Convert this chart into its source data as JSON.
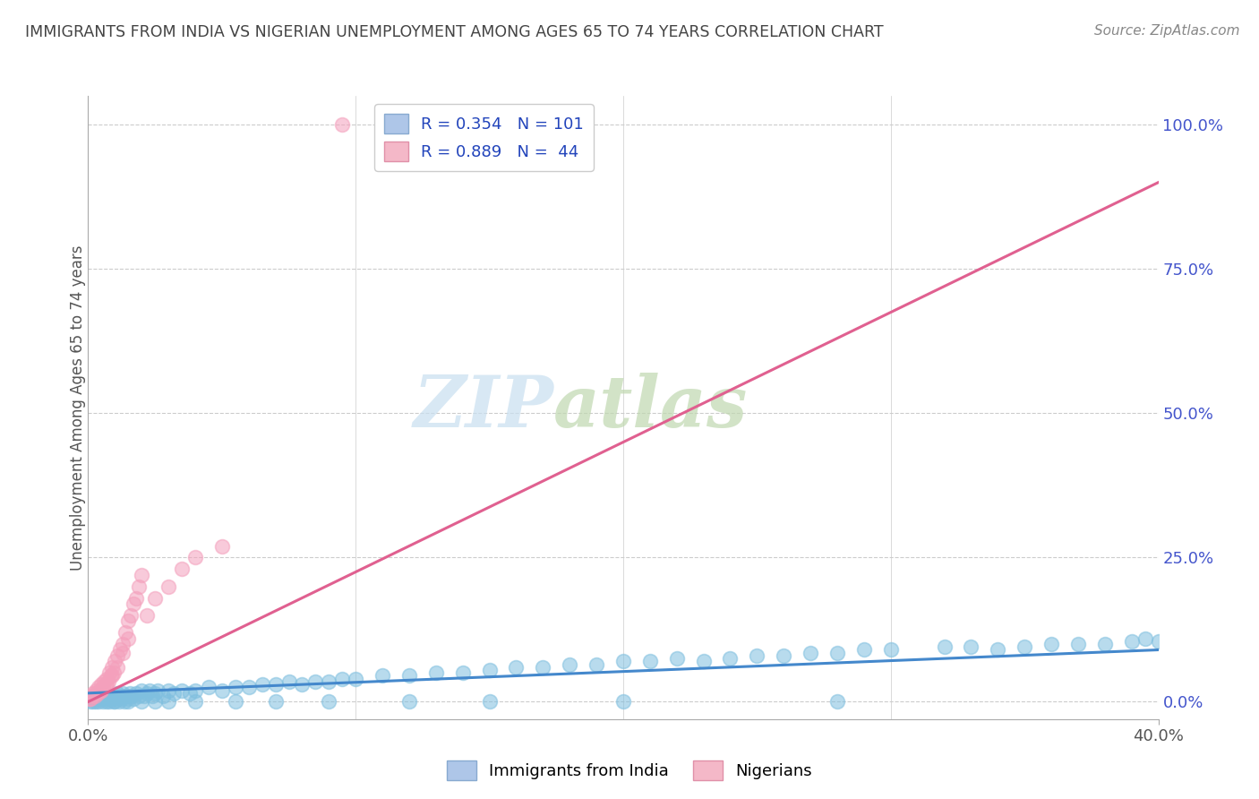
{
  "title": "IMMIGRANTS FROM INDIA VS NIGERIAN UNEMPLOYMENT AMONG AGES 65 TO 74 YEARS CORRELATION CHART",
  "source": "Source: ZipAtlas.com",
  "ylabel": "Unemployment Among Ages 65 to 74 years",
  "ytick_labels": [
    "0.0%",
    "25.0%",
    "50.0%",
    "75.0%",
    "100.0%"
  ],
  "ytick_values": [
    0,
    25,
    50,
    75,
    100
  ],
  "xlim": [
    0,
    40
  ],
  "ylim": [
    -3,
    105
  ],
  "legend_entries": [
    {
      "label": "R = 0.354   N = 101",
      "color": "#aec6e8"
    },
    {
      "label": "R = 0.889   N =  44",
      "color": "#f4b8c8"
    }
  ],
  "legend_labels_bottom": [
    "Immigrants from India",
    "Nigerians"
  ],
  "watermark_zip": "ZIP",
  "watermark_atlas": "atlas",
  "india_color": "#7fbfdf",
  "nigeria_color": "#f4a0bc",
  "india_line_color": "#4488cc",
  "nigeria_line_color": "#e06090",
  "background_color": "#ffffff",
  "grid_color": "#cccccc",
  "title_color": "#444444",
  "ytick_color": "#4455cc",
  "xtick_color": "#555555",
  "india_line_y0": 1.5,
  "india_line_y40": 9.0,
  "nigeria_line_y0": 0.0,
  "nigeria_line_y40": 90.0,
  "india_scatter_x": [
    0.1,
    0.15,
    0.2,
    0.25,
    0.3,
    0.35,
    0.4,
    0.5,
    0.55,
    0.6,
    0.65,
    0.7,
    0.75,
    0.8,
    0.85,
    0.9,
    0.95,
    1.0,
    1.05,
    1.1,
    1.15,
    1.2,
    1.25,
    1.3,
    1.35,
    1.4,
    1.5,
    1.55,
    1.6,
    1.7,
    1.8,
    1.9,
    2.0,
    2.1,
    2.2,
    2.3,
    2.4,
    2.5,
    2.6,
    2.8,
    3.0,
    3.2,
    3.5,
    3.8,
    4.0,
    4.5,
    5.0,
    5.5,
    6.0,
    6.5,
    7.0,
    7.5,
    8.0,
    8.5,
    9.0,
    9.5,
    10.0,
    11.0,
    12.0,
    13.0,
    14.0,
    15.0,
    16.0,
    17.0,
    18.0,
    19.0,
    20.0,
    21.0,
    22.0,
    23.0,
    24.0,
    25.0,
    26.0,
    27.0,
    28.0,
    29.0,
    30.0,
    32.0,
    33.0,
    34.0,
    35.0,
    36.0,
    37.0,
    38.0,
    39.0,
    39.5,
    40.0,
    1.0,
    1.5,
    2.0,
    2.5,
    3.0,
    4.0,
    5.5,
    7.0,
    9.0,
    12.0,
    15.0,
    20.0,
    28.0
  ],
  "india_scatter_y": [
    0.0,
    0.5,
    0.0,
    1.0,
    0.0,
    0.5,
    0.0,
    1.0,
    0.0,
    0.5,
    1.0,
    0.0,
    0.5,
    0.0,
    1.0,
    0.5,
    0.0,
    1.0,
    0.5,
    1.5,
    0.0,
    1.0,
    0.5,
    1.5,
    0.0,
    1.0,
    0.5,
    1.5,
    1.0,
    0.5,
    1.5,
    1.0,
    2.0,
    1.0,
    1.5,
    2.0,
    1.0,
    1.5,
    2.0,
    1.0,
    2.0,
    1.5,
    2.0,
    1.5,
    2.0,
    2.5,
    2.0,
    2.5,
    2.5,
    3.0,
    3.0,
    3.5,
    3.0,
    3.5,
    3.5,
    4.0,
    4.0,
    4.5,
    4.5,
    5.0,
    5.0,
    5.5,
    6.0,
    6.0,
    6.5,
    6.5,
    7.0,
    7.0,
    7.5,
    7.0,
    7.5,
    8.0,
    8.0,
    8.5,
    8.5,
    9.0,
    9.0,
    9.5,
    9.5,
    9.0,
    9.5,
    10.0,
    10.0,
    10.0,
    10.5,
    11.0,
    10.5,
    0.0,
    0.0,
    0.0,
    0.0,
    0.0,
    0.0,
    0.0,
    0.0,
    0.0,
    0.0,
    0.0,
    0.0,
    0.0
  ],
  "nigeria_scatter_x": [
    0.05,
    0.1,
    0.15,
    0.2,
    0.25,
    0.3,
    0.35,
    0.4,
    0.45,
    0.5,
    0.55,
    0.6,
    0.65,
    0.7,
    0.75,
    0.8,
    0.85,
    0.9,
    0.95,
    1.0,
    1.1,
    1.2,
    1.3,
    1.4,
    1.5,
    1.6,
    1.7,
    1.8,
    1.9,
    2.0,
    2.2,
    2.5,
    3.0,
    3.5,
    4.0,
    5.0,
    0.3,
    0.5,
    0.7,
    0.9,
    1.1,
    1.3,
    1.5,
    9.5
  ],
  "nigeria_scatter_y": [
    0.5,
    0.5,
    1.0,
    1.5,
    1.0,
    2.0,
    1.5,
    2.5,
    2.0,
    3.0,
    2.5,
    3.5,
    3.0,
    4.0,
    3.5,
    5.0,
    4.5,
    6.0,
    5.0,
    7.0,
    8.0,
    9.0,
    10.0,
    12.0,
    14.0,
    15.0,
    17.0,
    18.0,
    20.0,
    22.0,
    15.0,
    18.0,
    20.0,
    23.0,
    25.0,
    27.0,
    1.5,
    2.0,
    3.0,
    4.5,
    6.0,
    8.5,
    11.0,
    100.0
  ]
}
